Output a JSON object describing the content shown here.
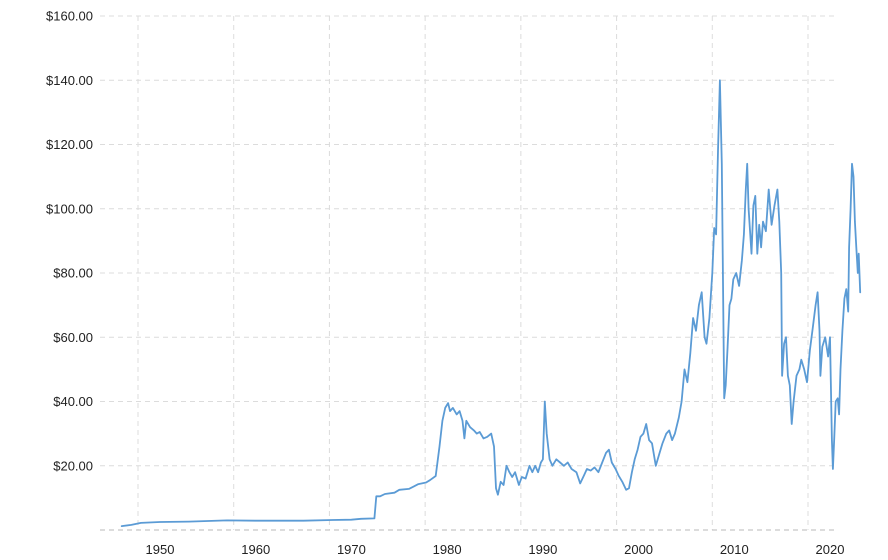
{
  "chart_data": {
    "type": "line",
    "title": "",
    "xlabel": "",
    "ylabel": "",
    "xlim": [
      1946,
      2022
    ],
    "ylim": [
      0,
      160
    ],
    "grid": true,
    "y_ticks": [
      {
        "value": 20,
        "label": "$20.00"
      },
      {
        "value": 40,
        "label": "$40.00"
      },
      {
        "value": 60,
        "label": "$60.00"
      },
      {
        "value": 80,
        "label": "$80.00"
      },
      {
        "value": 100,
        "label": "$100.00"
      },
      {
        "value": 120,
        "label": "$120.00"
      },
      {
        "value": 140,
        "label": "$140.00"
      },
      {
        "value": 160,
        "label": "$160.00"
      }
    ],
    "x_ticks": [
      {
        "value": 1950,
        "label": "1950"
      },
      {
        "value": 1960,
        "label": "1960"
      },
      {
        "value": 1970,
        "label": "1970"
      },
      {
        "value": 1980,
        "label": "1980"
      },
      {
        "value": 1990,
        "label": "1990"
      },
      {
        "value": 2000,
        "label": "2000"
      },
      {
        "value": 2010,
        "label": "2010"
      },
      {
        "value": 2020,
        "label": "2020"
      }
    ],
    "series": [
      {
        "color": "#5b9bd5",
        "points": [
          [
            1946,
            1.2
          ],
          [
            1947,
            1.6
          ],
          [
            1948,
            2.2
          ],
          [
            1950,
            2.5
          ],
          [
            1953,
            2.6
          ],
          [
            1957,
            3.0
          ],
          [
            1960,
            2.9
          ],
          [
            1965,
            2.9
          ],
          [
            1968,
            3.1
          ],
          [
            1970,
            3.2
          ],
          [
            1971,
            3.5
          ],
          [
            1972.4,
            3.6
          ],
          [
            1972.6,
            10.5
          ],
          [
            1973,
            10.5
          ],
          [
            1973.5,
            11.2
          ],
          [
            1974.5,
            11.6
          ],
          [
            1975,
            12.5
          ],
          [
            1976,
            12.8
          ],
          [
            1976.5,
            13.5
          ],
          [
            1977,
            14.3
          ],
          [
            1977.8,
            14.8
          ],
          [
            1978.2,
            15.5
          ],
          [
            1978.8,
            16.8
          ],
          [
            1979.2,
            26
          ],
          [
            1979.5,
            34
          ],
          [
            1979.8,
            38
          ],
          [
            1980.1,
            39.5
          ],
          [
            1980.3,
            37
          ],
          [
            1980.6,
            38
          ],
          [
            1981,
            36
          ],
          [
            1981.3,
            37
          ],
          [
            1981.6,
            34
          ],
          [
            1981.8,
            28.5
          ],
          [
            1982,
            34
          ],
          [
            1982.4,
            32
          ],
          [
            1982.8,
            31
          ],
          [
            1983.1,
            30
          ],
          [
            1983.4,
            30.5
          ],
          [
            1983.8,
            28.5
          ],
          [
            1984.2,
            29
          ],
          [
            1984.6,
            30
          ],
          [
            1984.9,
            26
          ],
          [
            1985.1,
            13
          ],
          [
            1985.3,
            11
          ],
          [
            1985.6,
            15
          ],
          [
            1985.9,
            14
          ],
          [
            1986.2,
            20
          ],
          [
            1986.5,
            18
          ],
          [
            1986.8,
            16.5
          ],
          [
            1987.1,
            18
          ],
          [
            1987.5,
            14
          ],
          [
            1987.8,
            16.5
          ],
          [
            1988.2,
            16
          ],
          [
            1988.6,
            20
          ],
          [
            1988.9,
            18
          ],
          [
            1989.2,
            20
          ],
          [
            1989.5,
            18
          ],
          [
            1989.8,
            21
          ],
          [
            1990.0,
            22
          ],
          [
            1990.2,
            40
          ],
          [
            1990.4,
            30
          ],
          [
            1990.7,
            22
          ],
          [
            1991,
            20
          ],
          [
            1991.4,
            22
          ],
          [
            1991.8,
            21
          ],
          [
            1992.2,
            20
          ],
          [
            1992.6,
            21
          ],
          [
            1993,
            19
          ],
          [
            1993.5,
            18
          ],
          [
            1993.9,
            14.5
          ],
          [
            1994.3,
            17
          ],
          [
            1994.6,
            19
          ],
          [
            1995,
            18.5
          ],
          [
            1995.4,
            19.5
          ],
          [
            1995.8,
            18
          ],
          [
            1996.2,
            21
          ],
          [
            1996.6,
            24
          ],
          [
            1996.9,
            25
          ],
          [
            1997.2,
            21
          ],
          [
            1997.6,
            19
          ],
          [
            1997.9,
            17
          ],
          [
            1998.3,
            15
          ],
          [
            1998.7,
            12.5
          ],
          [
            1999.0,
            13
          ],
          [
            1999.3,
            18
          ],
          [
            1999.6,
            22
          ],
          [
            1999.9,
            25
          ],
          [
            2000.2,
            29
          ],
          [
            2000.5,
            30
          ],
          [
            2000.8,
            33
          ],
          [
            2001.1,
            28
          ],
          [
            2001.4,
            27
          ],
          [
            2001.8,
            20
          ],
          [
            2002.2,
            24
          ],
          [
            2002.5,
            27
          ],
          [
            2002.9,
            30
          ],
          [
            2003.2,
            31
          ],
          [
            2003.5,
            28
          ],
          [
            2003.8,
            30
          ],
          [
            2004.2,
            35
          ],
          [
            2004.5,
            40
          ],
          [
            2004.8,
            50
          ],
          [
            2005.1,
            46
          ],
          [
            2005.4,
            55
          ],
          [
            2005.7,
            66
          ],
          [
            2006.0,
            62
          ],
          [
            2006.3,
            70
          ],
          [
            2006.6,
            74
          ],
          [
            2006.9,
            60
          ],
          [
            2007.1,
            58
          ],
          [
            2007.4,
            66
          ],
          [
            2007.7,
            80
          ],
          [
            2007.9,
            94
          ],
          [
            2008.1,
            92
          ],
          [
            2008.3,
            118
          ],
          [
            2008.5,
            140
          ],
          [
            2008.7,
            114
          ],
          [
            2008.85,
            68
          ],
          [
            2008.95,
            41
          ],
          [
            2009.1,
            45
          ],
          [
            2009.3,
            57
          ],
          [
            2009.5,
            70
          ],
          [
            2009.7,
            72
          ],
          [
            2009.9,
            78
          ],
          [
            2010.2,
            80
          ],
          [
            2010.5,
            76
          ],
          [
            2010.8,
            84
          ],
          [
            2011.0,
            92
          ],
          [
            2011.2,
            106
          ],
          [
            2011.35,
            114
          ],
          [
            2011.5,
            100
          ],
          [
            2011.8,
            86
          ],
          [
            2012.0,
            101
          ],
          [
            2012.2,
            104
          ],
          [
            2012.4,
            86
          ],
          [
            2012.6,
            95
          ],
          [
            2012.8,
            88
          ],
          [
            2013.0,
            96
          ],
          [
            2013.3,
            93
          ],
          [
            2013.6,
            106
          ],
          [
            2013.9,
            95
          ],
          [
            2014.2,
            101
          ],
          [
            2014.5,
            106
          ],
          [
            2014.7,
            96
          ],
          [
            2014.9,
            80
          ],
          [
            2015.0,
            48
          ],
          [
            2015.2,
            58
          ],
          [
            2015.4,
            60
          ],
          [
            2015.6,
            48
          ],
          [
            2015.8,
            45
          ],
          [
            2016.0,
            33
          ],
          [
            2016.2,
            40
          ],
          [
            2016.5,
            48
          ],
          [
            2016.8,
            50
          ],
          [
            2017.0,
            53
          ],
          [
            2017.3,
            50
          ],
          [
            2017.6,
            46
          ],
          [
            2017.9,
            56
          ],
          [
            2018.2,
            63
          ],
          [
            2018.5,
            70
          ],
          [
            2018.7,
            74
          ],
          [
            2018.9,
            62
          ],
          [
            2019.0,
            48
          ],
          [
            2019.2,
            57
          ],
          [
            2019.5,
            60
          ],
          [
            2019.8,
            54
          ],
          [
            2020.0,
            60
          ],
          [
            2020.2,
            28
          ],
          [
            2020.3,
            19
          ],
          [
            2020.45,
            29
          ],
          [
            2020.6,
            40
          ],
          [
            2020.8,
            41
          ],
          [
            2020.95,
            36
          ],
          [
            2021.1,
            50
          ],
          [
            2021.3,
            62
          ],
          [
            2021.5,
            72
          ],
          [
            2021.7,
            75
          ],
          [
            2021.9,
            68
          ],
          [
            2022.0,
            88
          ],
          [
            2022.15,
            100
          ],
          [
            2022.3,
            114
          ],
          [
            2022.45,
            110
          ],
          [
            2022.6,
            96
          ],
          [
            2022.75,
            88
          ],
          [
            2022.9,
            80
          ],
          [
            2023.0,
            86
          ],
          [
            2023.15,
            74
          ]
        ]
      }
    ]
  }
}
